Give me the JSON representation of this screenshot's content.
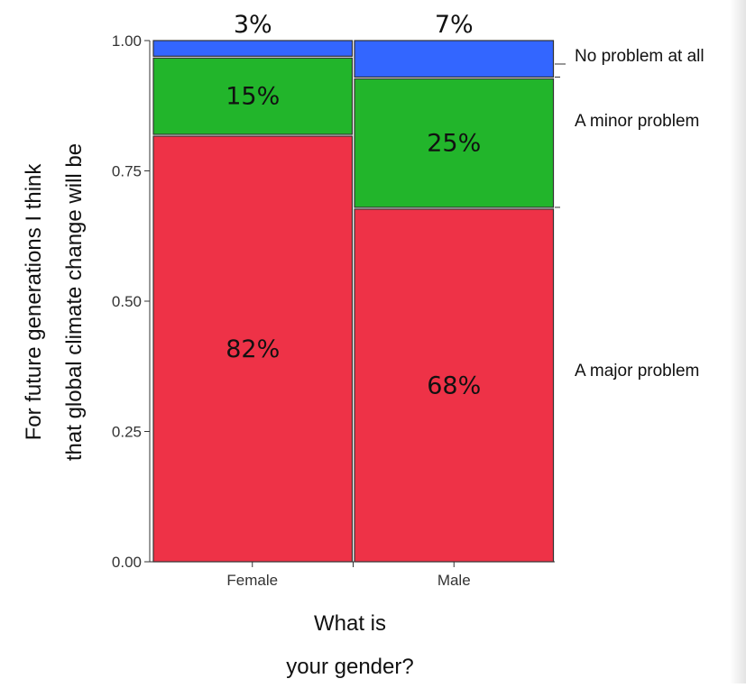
{
  "chart_data": {
    "type": "bar",
    "stacked": true,
    "categories": [
      "Female",
      "Male"
    ],
    "series": [
      {
        "name": "A major problem",
        "values": [
          0.82,
          0.68
        ],
        "labels": [
          "82%",
          "68%"
        ],
        "color": "#ee3247"
      },
      {
        "name": "A minor problem",
        "values": [
          0.15,
          0.25
        ],
        "labels": [
          "15%",
          "25%"
        ],
        "color": "#22b52b"
      },
      {
        "name": "No problem at all",
        "values": [
          0.03,
          0.07
        ],
        "labels": [
          "3%",
          "7%"
        ],
        "color": "#3366ff"
      }
    ],
    "yticks": [
      "0.00",
      "0.25",
      "0.50",
      "0.75",
      "1.00"
    ],
    "ylim": [
      0,
      1
    ],
    "ylabel_lines": [
      "For future generations I think",
      "that global climate change will be"
    ],
    "xlabel_lines": [
      "What is",
      "your gender?"
    ],
    "legend_position": "right"
  }
}
